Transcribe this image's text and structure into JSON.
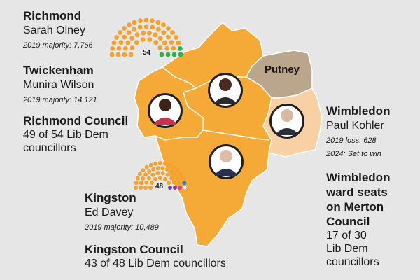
{
  "colors": {
    "background": "#e6e6e6",
    "libdem_area": "#f5a936",
    "libdem_light_area": "#f7d0a4",
    "putney_area": "#b9a68c",
    "border": "#ffffff",
    "seat_libdem": "#f4a12e",
    "seat_green": "#2db24a",
    "seat_blue": "#2d7fd0",
    "seat_purple": "#7d3bb0",
    "seat_pink": "#d83c9a",
    "seat_white": "#ffffff"
  },
  "richmond": {
    "name": "Richmond",
    "person": "Sarah Olney",
    "stat": "2019 majority: 7,766"
  },
  "twickenham": {
    "name": "Twickenham",
    "person": "Munira Wilson",
    "stat": "2019 majority: 14,121"
  },
  "richmond_council": {
    "title": "Richmond Council",
    "line1": "49 of 54 Lib Dem",
    "line2": "councillors",
    "total_label": "54",
    "seats": [
      {
        "party": "libdem",
        "count": 49
      },
      {
        "party": "green",
        "count": 5
      }
    ]
  },
  "kingston": {
    "name": "Kingston",
    "person": "Ed Davey",
    "stat": "2019 majority: 10,489"
  },
  "kingston_council": {
    "title": "Kingston Council",
    "line1": "43 of 48 Lib Dem councillors",
    "total_label": "48",
    "seats": [
      {
        "party": "libdem",
        "count": 43
      },
      {
        "party": "blue",
        "count": 1
      },
      {
        "party": "purple",
        "count": 2
      },
      {
        "party": "pink",
        "count": 1
      },
      {
        "party": "white",
        "count": 1
      }
    ]
  },
  "wimbledon": {
    "name": "Wimbledon",
    "person": "Paul Kohler",
    "stat1": "2019 loss: 628",
    "stat2": "2024: Set to win"
  },
  "wimbledon_council": {
    "title_line1": "Wimbledon",
    "title_line2": "ward seats",
    "title_line3": "on Merton",
    "title_line4": "Council",
    "line1": "17 of 30",
    "line2": "Lib Dem",
    "line3": "councillors"
  },
  "map": {
    "putney_label": "Putney"
  },
  "photos": [
    {
      "icon": "person-photo-icon",
      "who": "Munira Wilson"
    },
    {
      "icon": "person-photo-icon",
      "who": "Sarah Olney"
    },
    {
      "icon": "person-photo-icon",
      "who": "Paul Kohler"
    },
    {
      "icon": "person-photo-icon",
      "who": "Ed Davey"
    }
  ]
}
